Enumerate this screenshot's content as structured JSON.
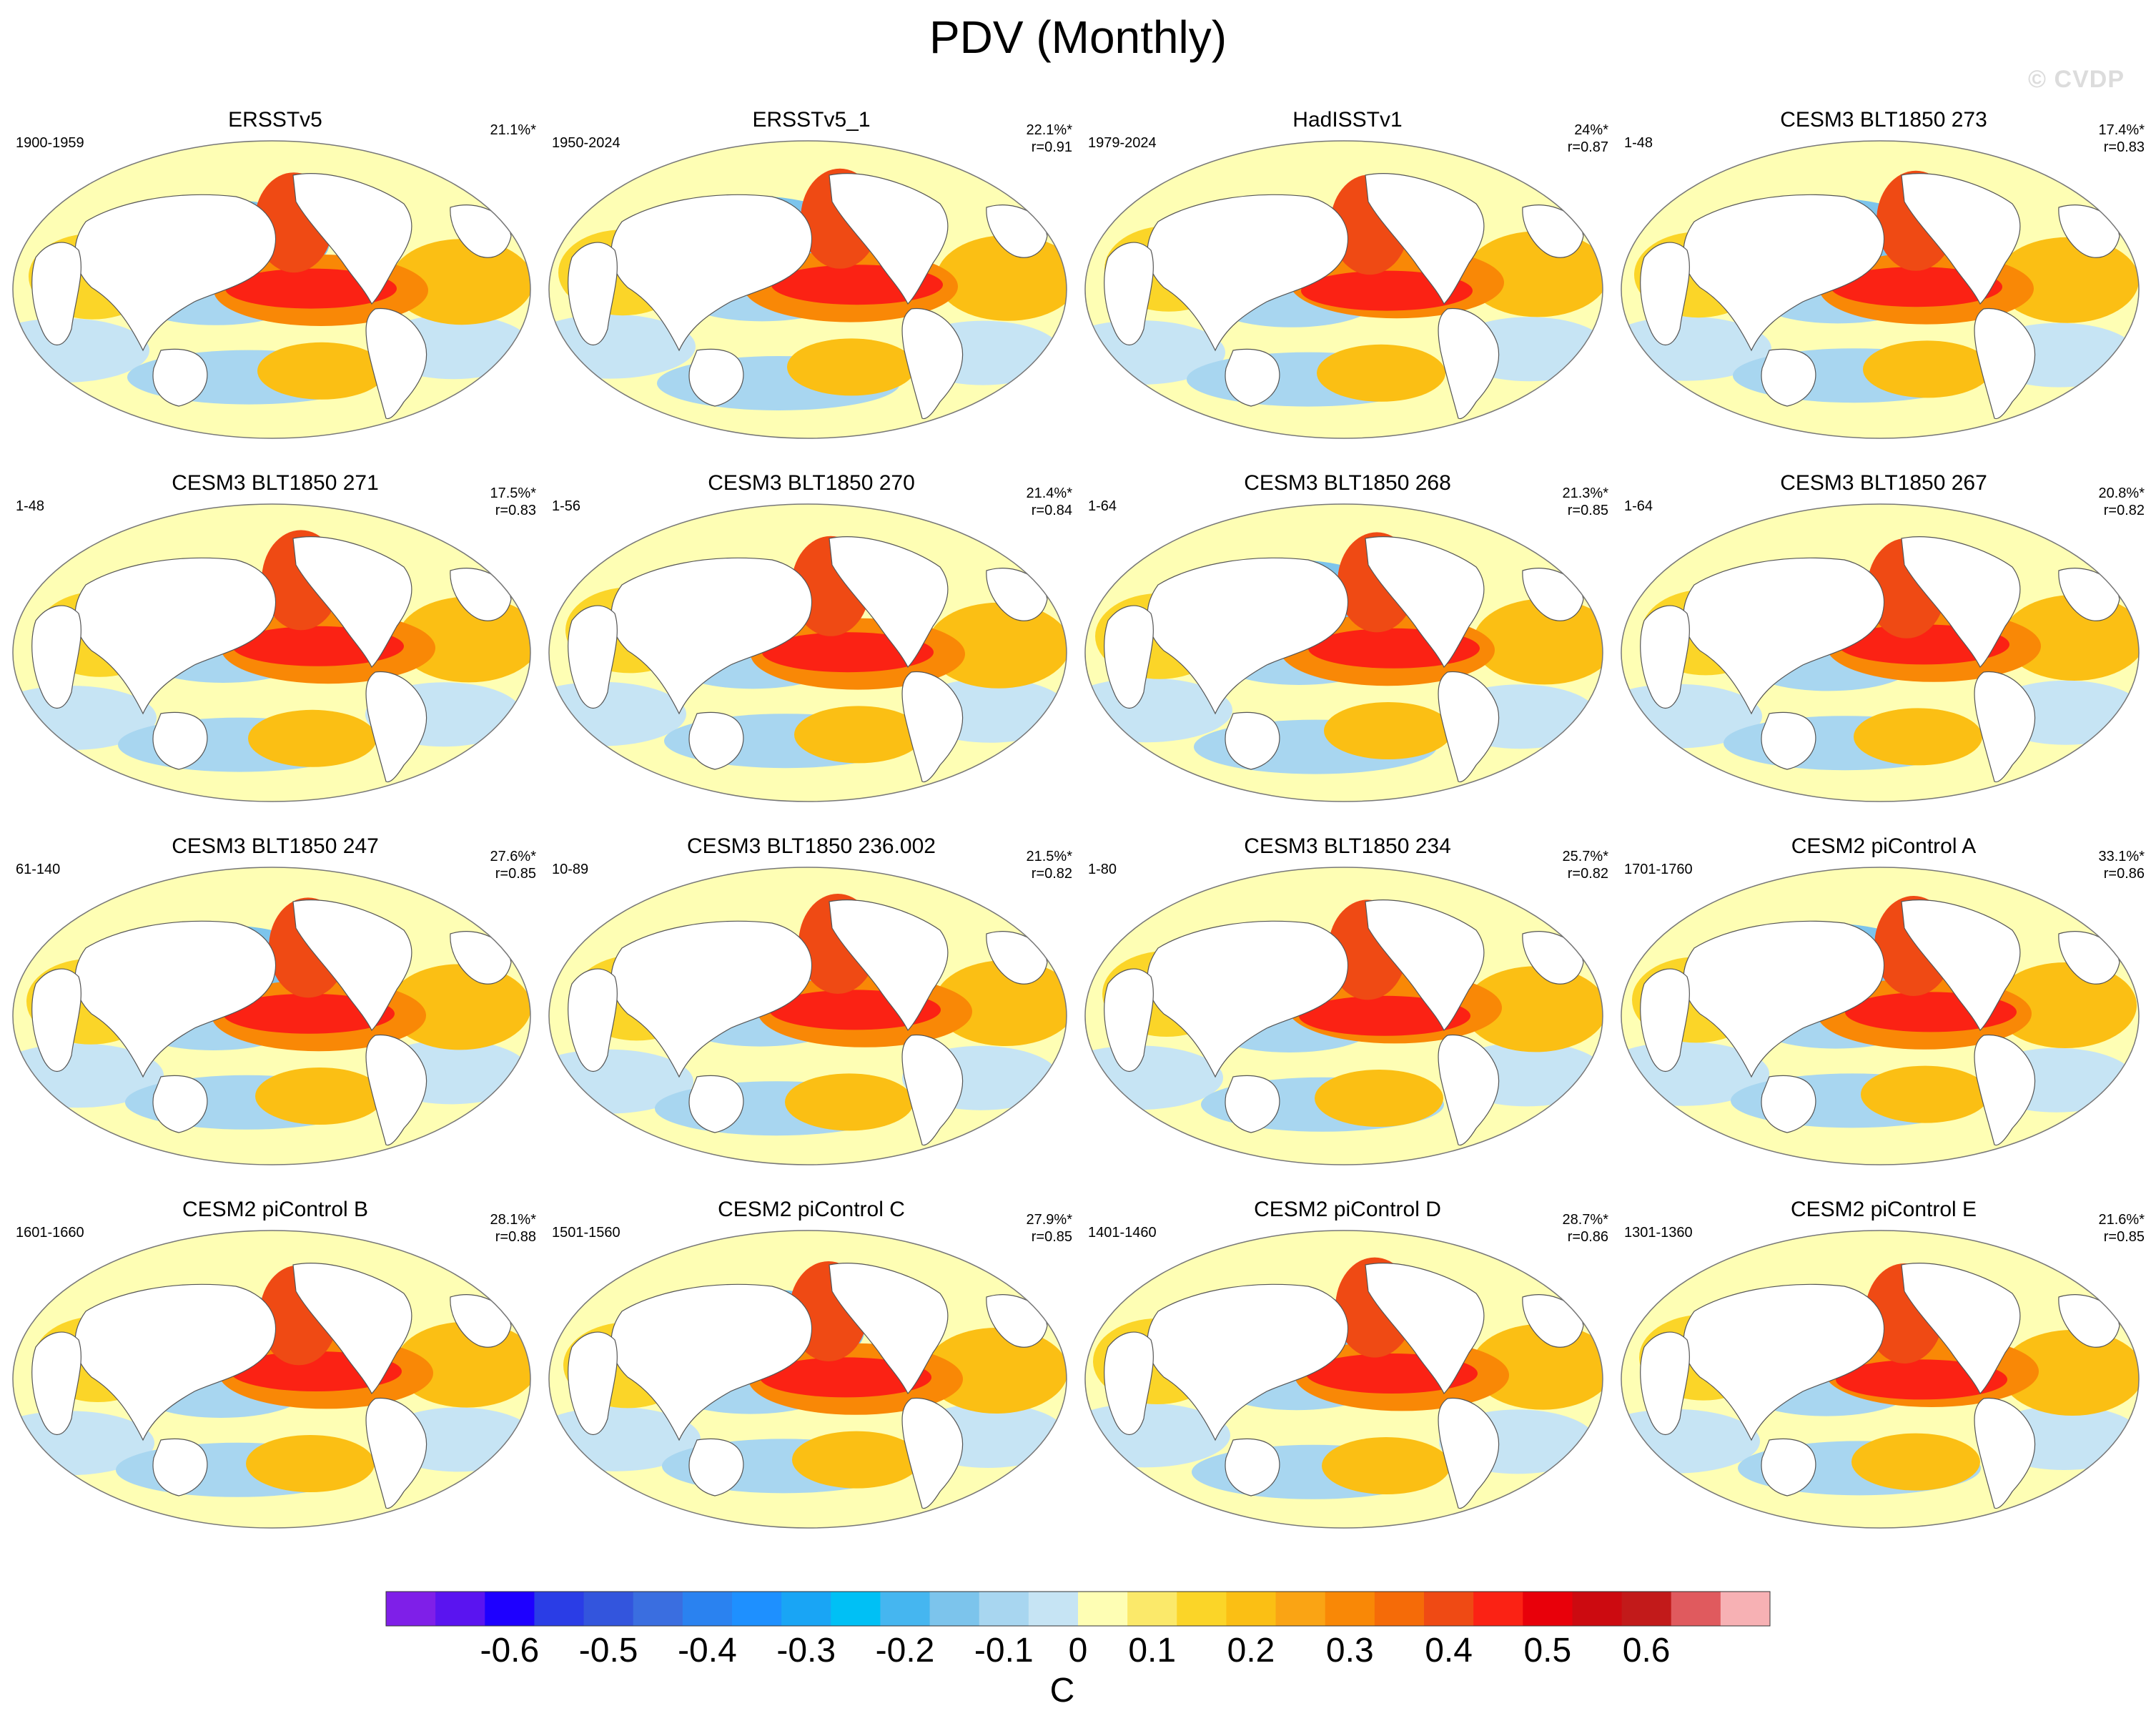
{
  "title": "PDV (Monthly)",
  "watermark": "© CVDP",
  "chart_data": {
    "type": "heatmap",
    "title": "PDV (Monthly)",
    "units": "C",
    "colorbar": {
      "ticks": [
        -0.6,
        -0.5,
        -0.4,
        -0.3,
        -0.2,
        -0.1,
        0,
        0.1,
        0.2,
        0.3,
        0.4,
        0.5,
        0.6
      ],
      "tick_labels": [
        "-0.6",
        "-0.5",
        "-0.4",
        "-0.3",
        "-0.2",
        "-0.1",
        "0",
        "0.1",
        "0.2",
        "0.3",
        "0.4",
        "0.5",
        "0.6"
      ],
      "colors": [
        "#7f1fe8",
        "#5a14f0",
        "#1e00ff",
        "#2a3de6",
        "#3355dd",
        "#3a6ee0",
        "#2a82f0",
        "#1e90ff",
        "#19a5f5",
        "#00c0f5",
        "#45b6f0",
        "#7cc4ec",
        "#a8d6f0",
        "#c6e4f4",
        "#fefeb4",
        "#fbe96a",
        "#fbd528",
        "#fbbf14",
        "#faa414",
        "#f98806",
        "#f56b08",
        "#ef4a14",
        "#fb2214",
        "#e8000a",
        "#cc0a10",
        "#c21a1a",
        "#e05a5e",
        "#f7b1b4"
      ],
      "xlabel": "C"
    },
    "panels": [
      {
        "name": "ERSSTv5",
        "period": "1900-1959",
        "variance": "21.1%*",
        "r": ""
      },
      {
        "name": "ERSSTv5_1",
        "period": "1950-2024",
        "variance": "22.1%*",
        "r": "r=0.91"
      },
      {
        "name": "HadISSTv1",
        "period": "1979-2024",
        "variance": "24%*",
        "r": "r=0.87"
      },
      {
        "name": "CESM3 BLT1850 273",
        "period": "1-48",
        "variance": "17.4%*",
        "r": "r=0.83"
      },
      {
        "name": "CESM3 BLT1850 271",
        "period": "1-48",
        "variance": "17.5%*",
        "r": "r=0.83"
      },
      {
        "name": "CESM3 BLT1850 270",
        "period": "1-56",
        "variance": "21.4%*",
        "r": "r=0.84"
      },
      {
        "name": "CESM3 BLT1850 268",
        "period": "1-64",
        "variance": "21.3%*",
        "r": "r=0.85"
      },
      {
        "name": "CESM3 BLT1850 267",
        "period": "1-64",
        "variance": "20.8%*",
        "r": "r=0.82"
      },
      {
        "name": "CESM3 BLT1850 247",
        "period": "61-140",
        "variance": "27.6%*",
        "r": "r=0.85"
      },
      {
        "name": "CESM3 BLT1850 236.002",
        "period": "10-89",
        "variance": "21.5%*",
        "r": "r=0.82"
      },
      {
        "name": "CESM3 BLT1850 234",
        "period": "1-80",
        "variance": "25.7%*",
        "r": "r=0.82"
      },
      {
        "name": "CESM2 piControl A",
        "period": "1701-1760",
        "variance": "33.1%*",
        "r": "r=0.86"
      },
      {
        "name": "CESM2 piControl B",
        "period": "1601-1660",
        "variance": "28.1%*",
        "r": "r=0.88"
      },
      {
        "name": "CESM2 piControl C",
        "period": "1501-1560",
        "variance": "27.9%*",
        "r": "r=0.85"
      },
      {
        "name": "CESM2 piControl D",
        "period": "1401-1460",
        "variance": "28.7%*",
        "r": "r=0.86"
      },
      {
        "name": "CESM2 piControl E",
        "period": "1301-1360",
        "variance": "21.6%*",
        "r": "r=0.85"
      }
    ]
  }
}
